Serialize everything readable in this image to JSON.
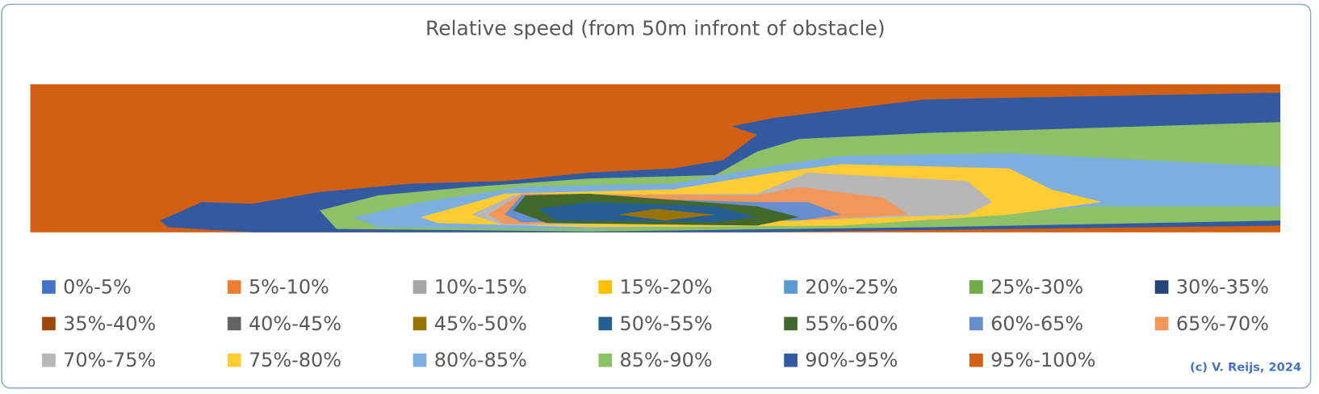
{
  "chart_data": {
    "type": "contour",
    "title": "Relative speed (from 50m infront of obstacle)",
    "credit": "(c) V. Reijs, 2024",
    "series": [
      {
        "name": "0%-5%",
        "color": "#4472c4"
      },
      {
        "name": "5%-10%",
        "color": "#ed7d31"
      },
      {
        "name": "10%-15%",
        "color": "#a5a5a5"
      },
      {
        "name": "15%-20%",
        "color": "#ffc000"
      },
      {
        "name": "20%-25%",
        "color": "#5b9bd5"
      },
      {
        "name": "25%-30%",
        "color": "#70ad47"
      },
      {
        "name": "30%-35%",
        "color": "#264478"
      },
      {
        "name": "35%-40%",
        "color": "#9e480e"
      },
      {
        "name": "40%-45%",
        "color": "#636363"
      },
      {
        "name": "45%-50%",
        "color": "#997300"
      },
      {
        "name": "50%-55%",
        "color": "#255e91"
      },
      {
        "name": "55%-60%",
        "color": "#43682b"
      },
      {
        "name": "60%-65%",
        "color": "#698ed0"
      },
      {
        "name": "65%-70%",
        "color": "#f1975a"
      },
      {
        "name": "70%-75%",
        "color": "#b7b7b7"
      },
      {
        "name": "75%-80%",
        "color": "#ffcd33"
      },
      {
        "name": "80%-85%",
        "color": "#7cafdd"
      },
      {
        "name": "85%-90%",
        "color": "#8cc168"
      },
      {
        "name": "90%-95%",
        "color": "#335aa1"
      },
      {
        "name": "95%-100%",
        "color": "#d26012"
      }
    ]
  }
}
